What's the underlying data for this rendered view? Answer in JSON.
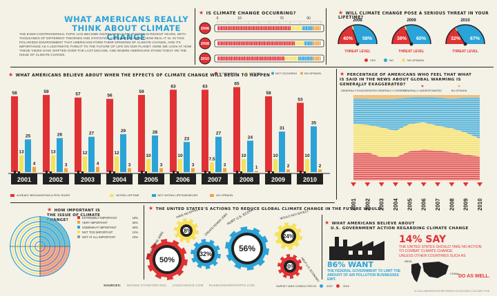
{
  "header": {
    "title": "WHAT AMERICANS REALLY THINK ABOUT CLIMATE CHANGE",
    "intro": "The ever-controversial topic has become increasingly politicized in recent years, with thousands of different theories and statistics circulating about how real it is. In this polarized environment that Americans form their opinions of climate change, and its importance as a legitimate threat to the future of life on our planet. Here we look at how these views have shifted over the last decade, and where Americans stand today on the issue of climate change."
  },
  "colors": {
    "red": "#e03234",
    "blue": "#2aa3d8",
    "yellow": "#f6e15a",
    "orange": "#f2a23a",
    "dark": "#222222"
  },
  "chart_data": [
    {
      "id": "occurring",
      "type": "bar",
      "title": "IS CLIMATE CHANGE OCCURRING?",
      "scale_ticks": [
        "0",
        "10",
        "70",
        "90"
      ],
      "categories": [
        "2006",
        "2008",
        "2010"
      ],
      "series": [
        {
          "name": "IS OCCURING",
          "values": [
            71,
            75,
            65
          ]
        },
        {
          "name": "UNSURE",
          "values": [
            11,
            9,
            13
          ]
        },
        {
          "name": "NOT OCCURING",
          "values": [
            10,
            8,
            14
          ]
        },
        {
          "name": "NO OPINION",
          "values": [
            8,
            8,
            8
          ]
        }
      ]
    },
    {
      "id": "threat",
      "type": "pie",
      "title": "WILL CLIMATE CHANGE POSE A SERIOUS THREAT IN YOUR LIFETIME?",
      "gauges": [
        {
          "year": "2008",
          "yes": 40,
          "no": 58,
          "caption": "THREAT LEVEL"
        },
        {
          "year": "2009",
          "yes": 38,
          "no": 60,
          "caption": "THREAT LEVEL"
        },
        {
          "year": "2010",
          "yes": 32,
          "no": 67,
          "caption": "THREAT LEVEL"
        }
      ],
      "legend": [
        "YES",
        "NO",
        "NO OPINION"
      ]
    },
    {
      "id": "when",
      "type": "bar",
      "title": "WHAT AMERICANS BELIEVE ABOUT WHEN THE EFFECTS OF CLIMATE CHANGE WILL BEGIN TO HAPPEN",
      "categories": [
        "2001",
        "2002",
        "2003",
        "2004",
        "2005",
        "2006",
        "2007",
        "2008",
        "2009",
        "2010"
      ],
      "series": [
        {
          "name": "ALREADY BEGUN/WITHIN A FEW YEARS",
          "values": [
            58,
            59,
            57,
            56,
            59,
            63,
            63,
            65,
            58,
            53
          ]
        },
        {
          "name": "WITHIN LIFETIME",
          "values": [
            13,
            13,
            12,
            12,
            10,
            10,
            7.5,
            10,
            10,
            10
          ]
        },
        {
          "name": "NOT WITHIN LIFETIME/NEVER",
          "values": [
            25,
            26,
            27,
            29,
            28,
            23,
            27,
            24,
            31,
            35
          ]
        },
        {
          "name": "NO OPINION",
          "values": [
            4,
            3,
            4,
            3,
            3,
            3,
            3,
            1,
            2,
            2
          ]
        }
      ]
    },
    {
      "id": "exaggerated",
      "type": "area",
      "title": "PERCENTAGE OF AMERICANS WHO FEEL THAT WHAT IS SAID IN THE NEWS ABOUT GLOBAL WARMING IS GENERALLY EXAGGERATED?",
      "x": [
        "2001",
        "2002",
        "2003",
        "2004",
        "2005",
        "2006",
        "2007",
        "2008",
        "2009",
        "2010"
      ],
      "series": [
        {
          "name": "GENERALLY EXAGGERATED",
          "values": [
            30,
            31,
            33,
            38,
            31,
            30,
            33,
            35,
            41,
            48
          ]
        },
        {
          "name": "GENERALLY CORRECT",
          "values": [
            34,
            32,
            35,
            31,
            32,
            32,
            29,
            28,
            26,
            21
          ]
        },
        {
          "name": "GENERALLY UNDERSTIMATED",
          "values": [
            32,
            33,
            27,
            27,
            34,
            36,
            35,
            33,
            30,
            28
          ]
        },
        {
          "name": "NO OPINION",
          "values": [
            4,
            4,
            5,
            4,
            3,
            2,
            3,
            4,
            3,
            3
          ]
        }
      ]
    },
    {
      "id": "importance",
      "type": "pie",
      "title": "HOW IMPORTANT IS THE ISSUE OF CLIMATE CHANGE?",
      "categories": [
        "EXTREMELY IMPORTANT",
        "VERY IMPORTANT",
        "SOMEWHAT IMPORTANT",
        "NOT TOO IMPORTANT",
        "NOT AT ALL IMPORTANT"
      ],
      "values": [
        18,
        30,
        30,
        12,
        10
      ],
      "labels": [
        "18%",
        "30%",
        "30%",
        "12%",
        "10%"
      ]
    },
    {
      "id": "actions",
      "type": "pie",
      "title": "THE UNITED STATES'S ACTIONS TO REDUCE GLOBAL CLIMATE CHANGE IN THE FUTURE WOULD:",
      "gears": [
        {
          "label": "CREATE MORE JOBS",
          "value": "50%"
        },
        {
          "label": "HAVE NO EFFECT",
          "value": "18%"
        },
        {
          "label": "CREATE FEWER JOBS",
          "value": "32%"
        },
        {
          "label": "HURT U.S. ECONOMY",
          "value": "56%"
        },
        {
          "label": "WOULD NOT EFFECT",
          "value": "24%"
        },
        {
          "label": "HELP U.S. ECONOMY",
          "value": "20%"
        }
      ]
    }
  ],
  "government": {
    "title_line1": "WHAT AMERICANS BELIEVE ABOUT",
    "title_line2": "U.S. GOVERNMENT ACTION REGARDING CLIMATE CHANGE",
    "want_big": "86% WANT",
    "want_text": "THE FEDERAL GOVERNMENT TO LIMIT THE AMOUNT OF AIR POLLUTION BUSINESSES EMIT.",
    "say_big": "14% SAY",
    "say_text1": "THE UNITED STATES SHOULD TAKE NO ACTION",
    "say_text2": "TO COMBAT CLIMATE CHANGE",
    "say_text3": "UNLESS OTHER COUNTRIES SUCH AS",
    "india": "INDIA",
    "china": "CHINA",
    "do_as_well": "DO AS WELL."
  },
  "footer": {
    "sources_label": "SOURCES:",
    "sources": [
      "WOODS.STANFORD.EDU",
      "LIVESCIENCE.COM",
      "RASMUSSENREPORTS.COM"
    ],
    "survey": "SURVEY WAS CONDUCTED IN",
    "year_a": "2007",
    "year_b": "2010",
    "credit": "A COLLABORATION BETWEEN GOOD AND COLUMN FIVE"
  }
}
